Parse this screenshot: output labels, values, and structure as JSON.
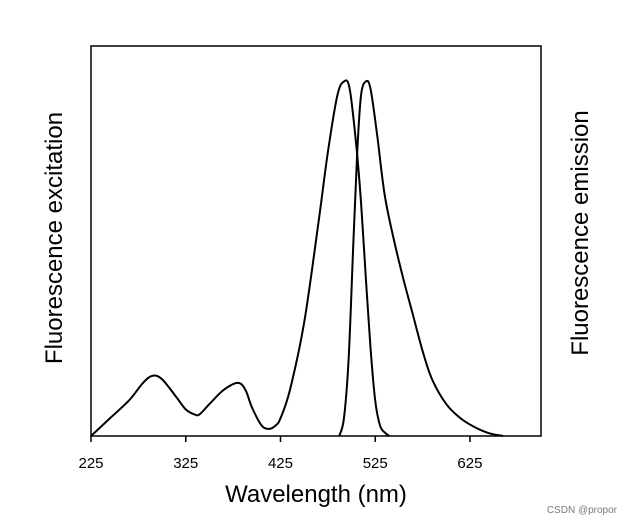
{
  "chart_data": {
    "type": "line",
    "title": "",
    "xlabel": "Wavelength (nm)",
    "ylabel_left": "Fluorescence excitation",
    "ylabel_right": "Fluorescence emission",
    "xlim": [
      225,
      700
    ],
    "ylim": [
      0,
      1.1
    ],
    "xticks": [
      225,
      325,
      425,
      525,
      625
    ],
    "grid": false,
    "series": [
      {
        "name": "excitation",
        "points": [
          [
            225,
            0.0
          ],
          [
            245,
            0.05
          ],
          [
            265,
            0.1
          ],
          [
            280,
            0.15
          ],
          [
            290,
            0.17
          ],
          [
            300,
            0.16
          ],
          [
            315,
            0.11
          ],
          [
            325,
            0.075
          ],
          [
            335,
            0.06
          ],
          [
            340,
            0.062
          ],
          [
            350,
            0.09
          ],
          [
            365,
            0.13
          ],
          [
            380,
            0.15
          ],
          [
            388,
            0.13
          ],
          [
            395,
            0.08
          ],
          [
            405,
            0.03
          ],
          [
            413,
            0.02
          ],
          [
            420,
            0.03
          ],
          [
            425,
            0.05
          ],
          [
            435,
            0.13
          ],
          [
            450,
            0.32
          ],
          [
            465,
            0.6
          ],
          [
            475,
            0.8
          ],
          [
            485,
            0.96
          ],
          [
            492,
            1.0
          ],
          [
            498,
            0.98
          ],
          [
            505,
            0.82
          ],
          [
            510,
            0.66
          ],
          [
            515,
            0.45
          ],
          [
            520,
            0.25
          ],
          [
            525,
            0.1
          ],
          [
            530,
            0.03
          ],
          [
            535,
            0.01
          ],
          [
            540,
            0.0
          ]
        ]
      },
      {
        "name": "emission",
        "points": [
          [
            487,
            0.0
          ],
          [
            492,
            0.05
          ],
          [
            497,
            0.22
          ],
          [
            502,
            0.55
          ],
          [
            506,
            0.8
          ],
          [
            510,
            0.96
          ],
          [
            515,
            1.0
          ],
          [
            520,
            0.98
          ],
          [
            527,
            0.85
          ],
          [
            535,
            0.68
          ],
          [
            545,
            0.55
          ],
          [
            555,
            0.44
          ],
          [
            565,
            0.34
          ],
          [
            575,
            0.24
          ],
          [
            585,
            0.16
          ],
          [
            600,
            0.09
          ],
          [
            615,
            0.05
          ],
          [
            630,
            0.025
          ],
          [
            645,
            0.008
          ],
          [
            660,
            0.0
          ]
        ]
      }
    ]
  },
  "watermark": "CSDN @propor"
}
